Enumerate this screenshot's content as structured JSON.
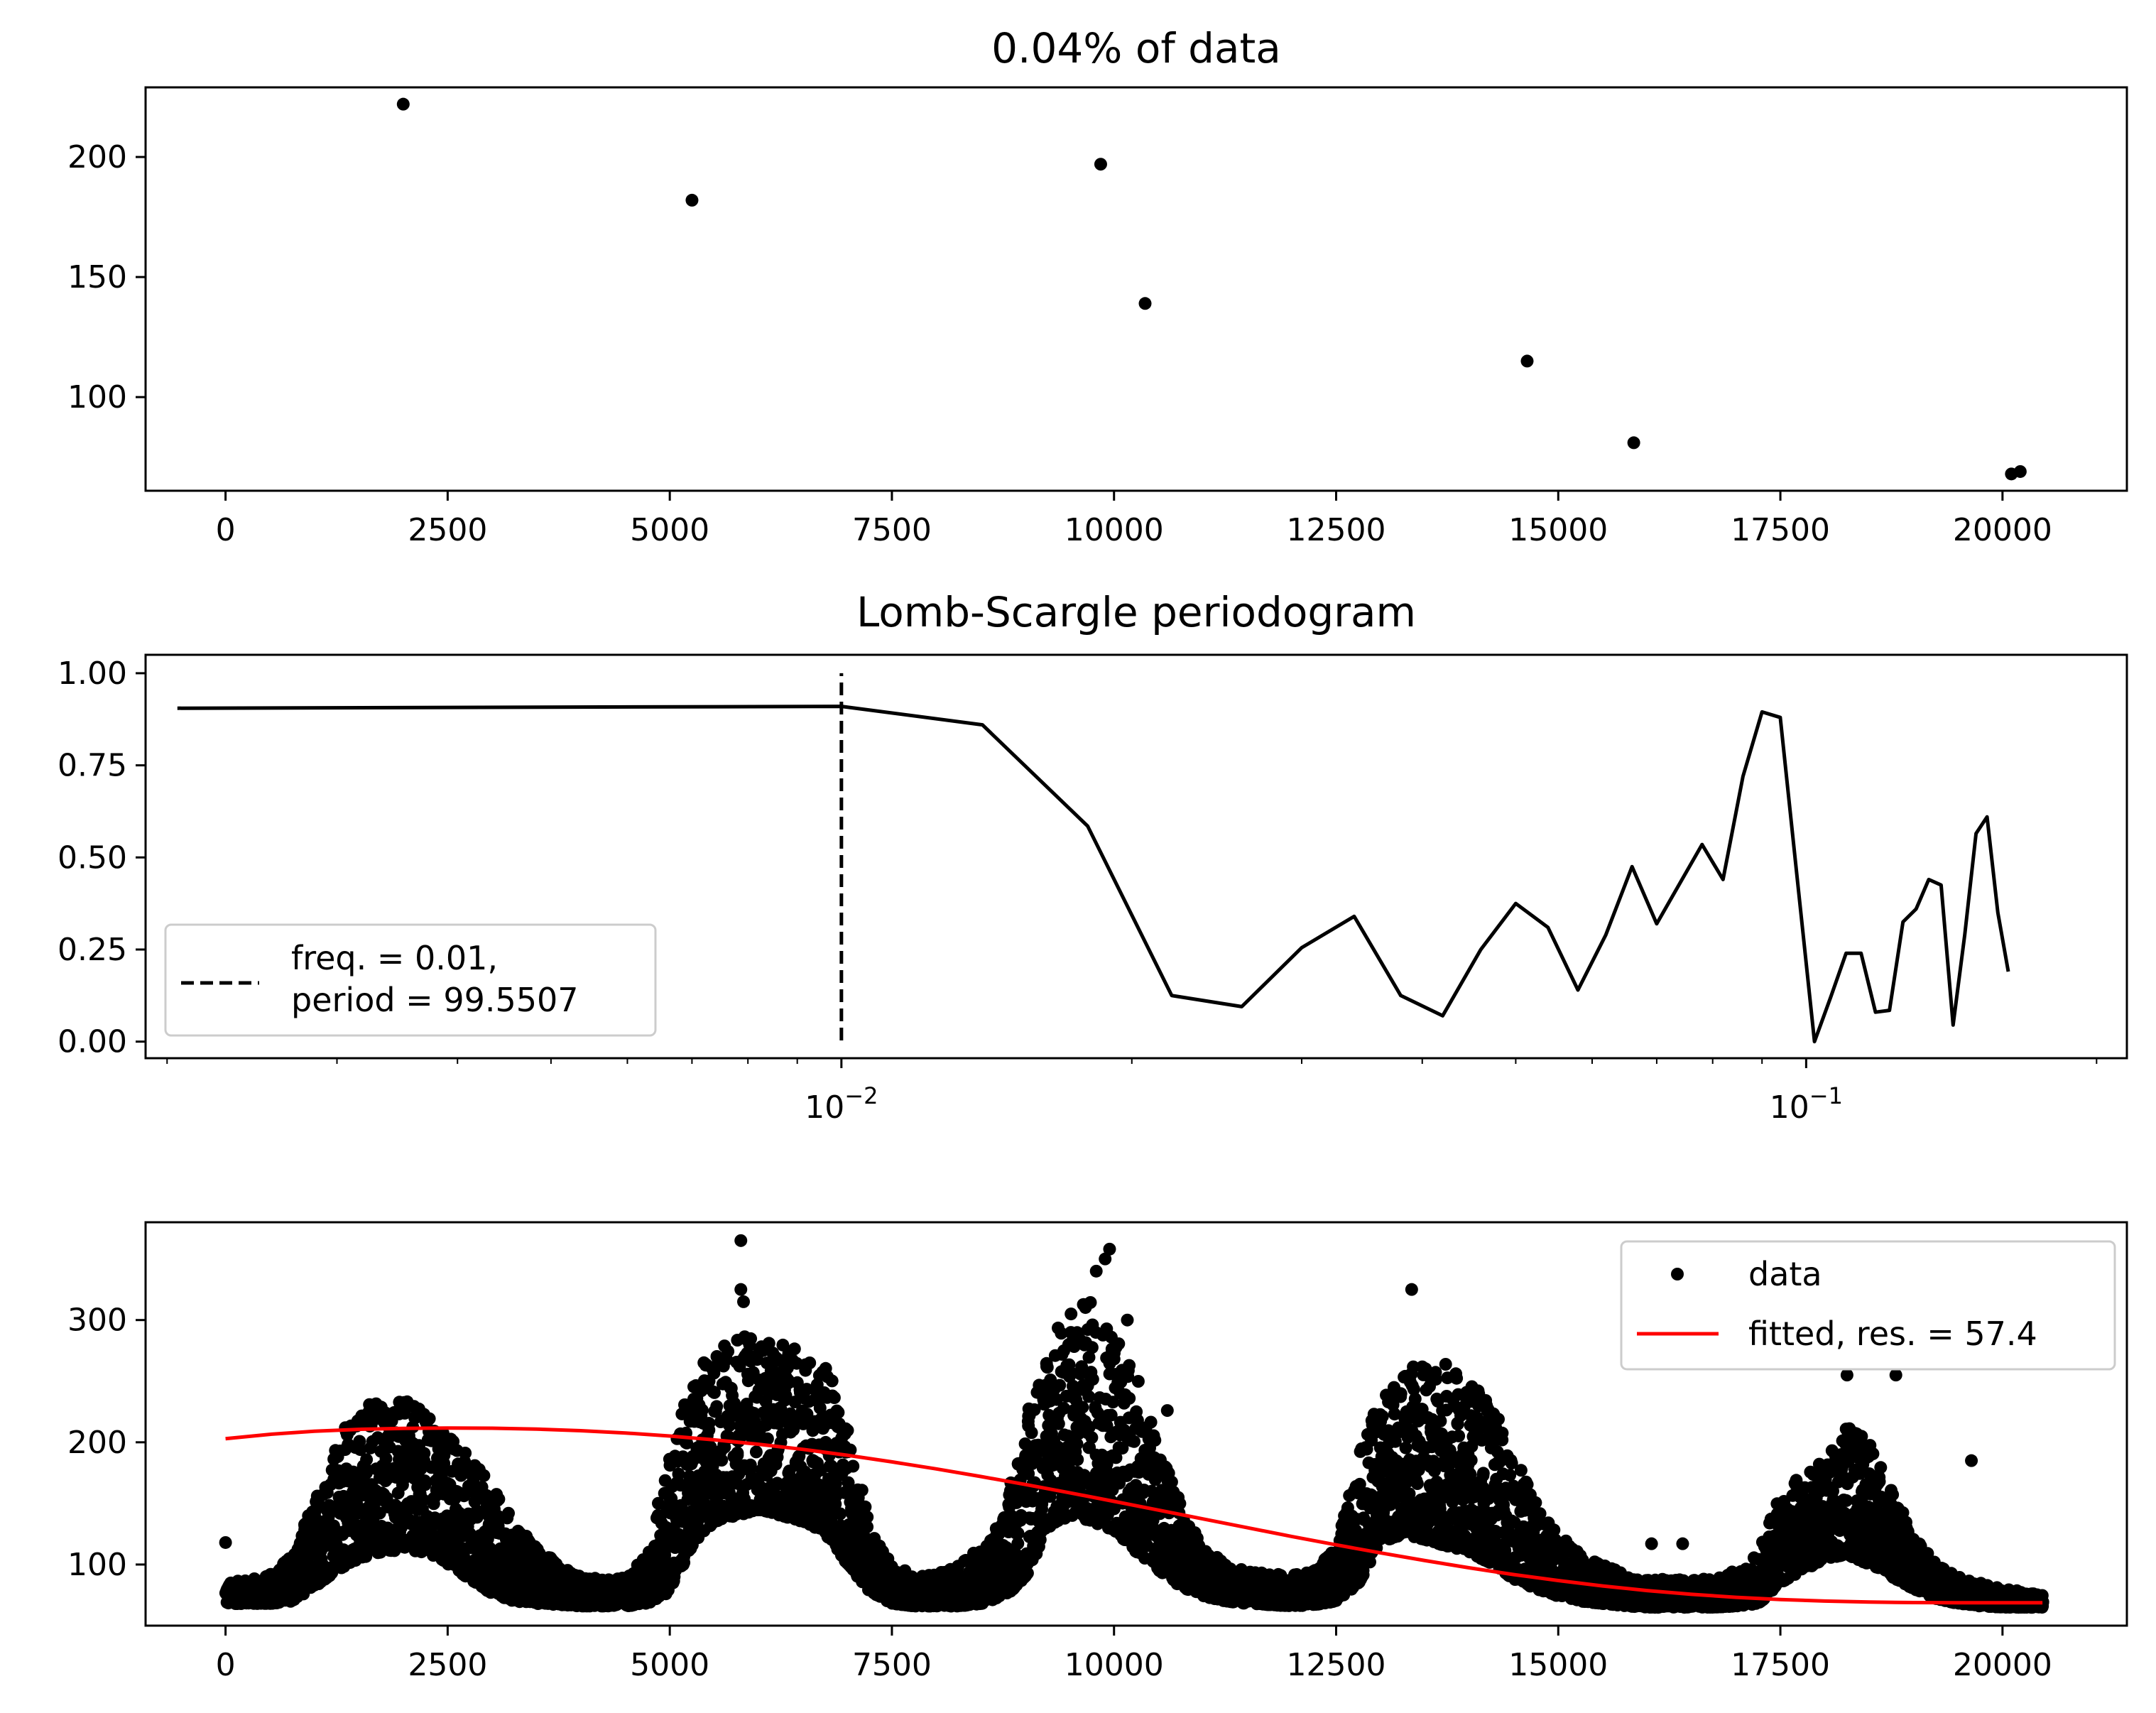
{
  "chart_data": [
    {
      "type": "scatter",
      "title": "0.04% of data",
      "xlabel": "",
      "ylabel": "",
      "xlim": [
        -900,
        21400
      ],
      "ylim": [
        61,
        229
      ],
      "x_ticks": [
        0,
        2500,
        5000,
        7500,
        10000,
        12500,
        15000,
        17500,
        20000
      ],
      "x_tick_labels": [
        "0",
        "2500",
        "5000",
        "7500",
        "10000",
        "12500",
        "15000",
        "17500",
        "20000"
      ],
      "y_ticks": [
        100,
        150,
        200
      ],
      "y_tick_labels": [
        "100",
        "150",
        "200"
      ],
      "series": [
        {
          "color": "#000000",
          "points": [
            [
              2000,
              222
            ],
            [
              5250,
              182
            ],
            [
              9850,
              197
            ],
            [
              10350,
              139
            ],
            [
              14650,
              115
            ],
            [
              15850,
              81
            ],
            [
              20100,
              68
            ],
            [
              20200,
              69
            ]
          ]
        }
      ],
      "grid": false
    },
    {
      "type": "line",
      "title": "Lomb-Scargle periodogram",
      "xlabel": "",
      "ylabel": "",
      "xscale": "log",
      "xlim": [
        0.0019,
        0.215
      ],
      "ylim": [
        -0.045,
        1.05
      ],
      "x_ticks": [
        0.01,
        0.1
      ],
      "x_tick_labels": [
        {
          "base": "10",
          "exp": "−2"
        },
        {
          "base": "10",
          "exp": "−1"
        }
      ],
      "y_ticks": [
        0,
        0.25,
        0.5,
        0.75,
        1.0
      ],
      "y_tick_labels": [
        "0.00",
        "0.25",
        "0.50",
        "0.75",
        "1.00"
      ],
      "series": [
        {
          "color": "#000000",
          "points": [
            [
              0.00205,
              0.905
            ],
            [
              0.01,
              0.91
            ],
            [
              0.014,
              0.86
            ],
            [
              0.018,
              0.585
            ],
            [
              0.022,
              0.125
            ],
            [
              0.026,
              0.095
            ],
            [
              0.03,
              0.255
            ],
            [
              0.034,
              0.34
            ],
            [
              0.038,
              0.125
            ],
            [
              0.042,
              0.07
            ],
            [
              0.046,
              0.25
            ],
            [
              0.05,
              0.375
            ],
            [
              0.054,
              0.31
            ],
            [
              0.058,
              0.14
            ],
            [
              0.062,
              0.29
            ],
            [
              0.066,
              0.475
            ],
            [
              0.07,
              0.32
            ],
            [
              0.078,
              0.535
            ],
            [
              0.082,
              0.44
            ],
            [
              0.086,
              0.72
            ],
            [
              0.09,
              0.895
            ],
            [
              0.094,
              0.88
            ],
            [
              0.098,
              0.43
            ],
            [
              0.102,
              0.0
            ],
            [
              0.106,
              0.12
            ],
            [
              0.11,
              0.24
            ],
            [
              0.114,
              0.24
            ],
            [
              0.118,
              0.08
            ],
            [
              0.122,
              0.085
            ],
            [
              0.126,
              0.325
            ],
            [
              0.13,
              0.36
            ],
            [
              0.134,
              0.44
            ],
            [
              0.138,
              0.425
            ],
            [
              0.142,
              0.045
            ],
            [
              0.146,
              0.29
            ],
            [
              0.15,
              0.565
            ],
            [
              0.154,
              0.61
            ],
            [
              0.158,
              0.35
            ],
            [
              0.162,
              0.19
            ]
          ]
        }
      ],
      "vline": {
        "x": 0.01,
        "color": "#000000",
        "style": "dashed"
      },
      "legend": {
        "placement": "lower-left",
        "entries": [
          {
            "line1": "freq. = 0.01,",
            "line2": "period = 99.5507",
            "style": "dashed"
          }
        ]
      },
      "grid": false
    },
    {
      "type": "scatter",
      "title": "",
      "xlabel": "",
      "ylabel": "",
      "xlim": [
        -900,
        21400
      ],
      "ylim": [
        50,
        380
      ],
      "x_ticks": [
        0,
        2500,
        5000,
        7500,
        10000,
        12500,
        15000,
        17500,
        20000
      ],
      "x_tick_labels": [
        "0",
        "2500",
        "5000",
        "7500",
        "10000",
        "12500",
        "15000",
        "17500",
        "20000"
      ],
      "y_ticks": [
        100,
        200,
        300
      ],
      "y_tick_labels": [
        "100",
        "200",
        "300"
      ],
      "data_envelope": {
        "x": [
          0,
          250,
          500,
          750,
          1000,
          1250,
          1500,
          1750,
          2000,
          2250,
          2500,
          2750,
          3000,
          3250,
          3500,
          3750,
          4000,
          4250,
          4500,
          4750,
          5000,
          5250,
          5500,
          5750,
          6000,
          6250,
          6500,
          6750,
          7000,
          7250,
          7500,
          7750,
          8000,
          8250,
          8500,
          8750,
          9000,
          9250,
          9500,
          9750,
          10000,
          10250,
          10500,
          10750,
          11000,
          11250,
          11500,
          11750,
          12000,
          12250,
          12500,
          12750,
          13000,
          13250,
          13500,
          13750,
          14000,
          14250,
          14500,
          14750,
          15000,
          15250,
          15500,
          15750,
          16000,
          16250,
          16500,
          16750,
          17000,
          17250,
          17500,
          17750,
          18000,
          18250,
          18500,
          18750,
          19000,
          19250,
          19500,
          19750,
          20000,
          20250,
          20450
        ],
        "low": [
          68,
          68,
          68,
          70,
          82,
          95,
          105,
          110,
          112,
          110,
          100,
          88,
          76,
          70,
          68,
          67,
          66,
          66,
          66,
          68,
          78,
          115,
          135,
          140,
          145,
          140,
          135,
          125,
          100,
          78,
          68,
          66,
          66,
          66,
          68,
          72,
          90,
          130,
          140,
          135,
          128,
          110,
          95,
          82,
          74,
          70,
          68,
          67,
          66,
          67,
          70,
          85,
          118,
          125,
          120,
          115,
          110,
          100,
          88,
          80,
          74,
          70,
          68,
          66,
          65,
          65,
          65,
          65,
          66,
          68,
          85,
          95,
          105,
          108,
          100,
          90,
          80,
          72,
          68,
          66,
          65,
          65,
          65
        ],
        "high": [
          85,
          88,
          92,
          110,
          155,
          200,
          235,
          240,
          235,
          225,
          210,
          190,
          165,
          135,
          115,
          100,
          90,
          88,
          90,
          110,
          195,
          250,
          280,
          290,
          285,
          280,
          275,
          265,
          215,
          130,
          100,
          92,
          92,
          100,
          115,
          140,
          220,
          285,
          310,
          320,
          300,
          255,
          200,
          150,
          115,
          100,
          95,
          92,
          92,
          95,
          115,
          190,
          240,
          260,
          265,
          265,
          255,
          230,
          190,
          150,
          125,
          110,
          100,
          92,
          88,
          88,
          88,
          90,
          95,
          110,
          160,
          175,
          185,
          215,
          200,
          160,
          125,
          100,
          90,
          85,
          80,
          78,
          75
        ]
      },
      "outliers": [
        [
          0,
          118
        ],
        [
          5800,
          365
        ],
        [
          5800,
          325
        ],
        [
          5830,
          315
        ],
        [
          9950,
          358
        ],
        [
          9900,
          350
        ],
        [
          9800,
          340
        ],
        [
          10150,
          300
        ],
        [
          13350,
          325
        ],
        [
          16050,
          117
        ],
        [
          16400,
          117
        ],
        [
          18250,
          255
        ],
        [
          18800,
          255
        ],
        [
          19650,
          185
        ],
        [
          10600,
          226
        ]
      ],
      "fit": {
        "color": "#ff0000",
        "x": [
          0,
          500,
          1000,
          1500,
          2000,
          2500,
          3000,
          3500,
          4000,
          4500,
          5000,
          5500,
          6000,
          6500,
          7000,
          7500,
          8000,
          8500,
          9000,
          9500,
          10000,
          10500,
          11000,
          11500,
          12000,
          12500,
          13000,
          13500,
          14000,
          14500,
          15000,
          15500,
          16000,
          16500,
          17000,
          17500,
          18000,
          18500,
          19000,
          19500,
          20000,
          20450
        ],
        "y": [
          203,
          206.5,
          209,
          210.6,
          211.4,
          211.7,
          211.5,
          210.8,
          209.5,
          207.6,
          205.1,
          202,
          198.4,
          194.2,
          189.4,
          184,
          178.2,
          172,
          165.5,
          158.7,
          151.7,
          144.5,
          137.3,
          130.1,
          123,
          116.1,
          109.5,
          103.2,
          97.3,
          91.8,
          86.9,
          82.5,
          78.7,
          75.6,
          73.2,
          71.4,
          70.1,
          69.3,
          68.9,
          68.7,
          68.7,
          68.7
        ]
      },
      "legend": {
        "placement": "upper-right",
        "entries": [
          {
            "label": "data",
            "marker": "dot"
          },
          {
            "label": "fitted, res. = 57.4",
            "marker": "line",
            "color": "#ff0000"
          }
        ]
      },
      "grid": false
    }
  ]
}
